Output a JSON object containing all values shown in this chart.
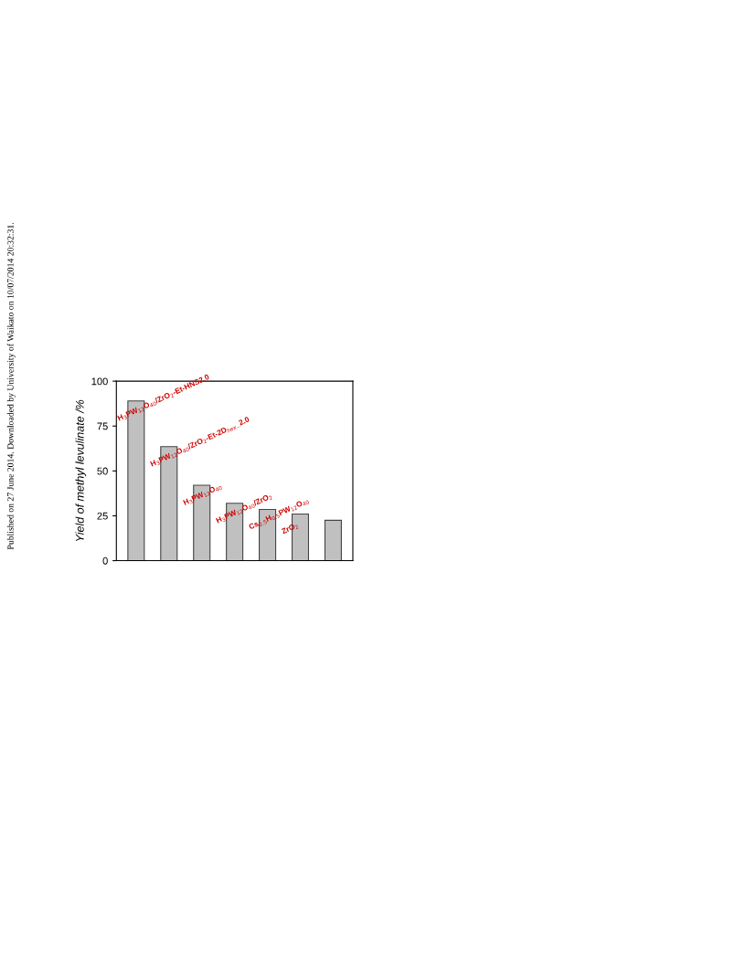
{
  "chart_data": {
    "type": "bar",
    "ylabel": "Yield of methyl levulinate /%",
    "categories": [
      null,
      null,
      null,
      null,
      null,
      null,
      null
    ],
    "values": [
      89,
      63.5,
      42,
      32,
      28.5,
      26,
      22.5
    ],
    "color": "#c0c0c0",
    "ylim": [
      0,
      100
    ],
    "yticks": [
      0,
      25,
      50,
      75,
      100
    ],
    "grid": false,
    "tick_labels": "y",
    "annotations": [
      "H$_{3}$PW$_{12}$O$_{40}$/ZrO$_{2}$-Et-HNS2.0",
      "H$_{3}$PW$_{12}$O$_{40}$/ZrO$_{2}$-Et-2D$_{hex}$_2.0",
      "H$_{3}$PW$_{12}$O$_{40}$",
      "H$_{3}$PW$_{12}$O$_{40}$/ZrO$_{2}$",
      "Cs$_{2.5}$H$_{0.5}$PW$_{12}$O$_{40}$",
      "ZrO$_{2}$",
      "Published on 27 June 2014. Downloaded by University of Waikato on 10/07/2014 20:32:31."
    ]
  }
}
